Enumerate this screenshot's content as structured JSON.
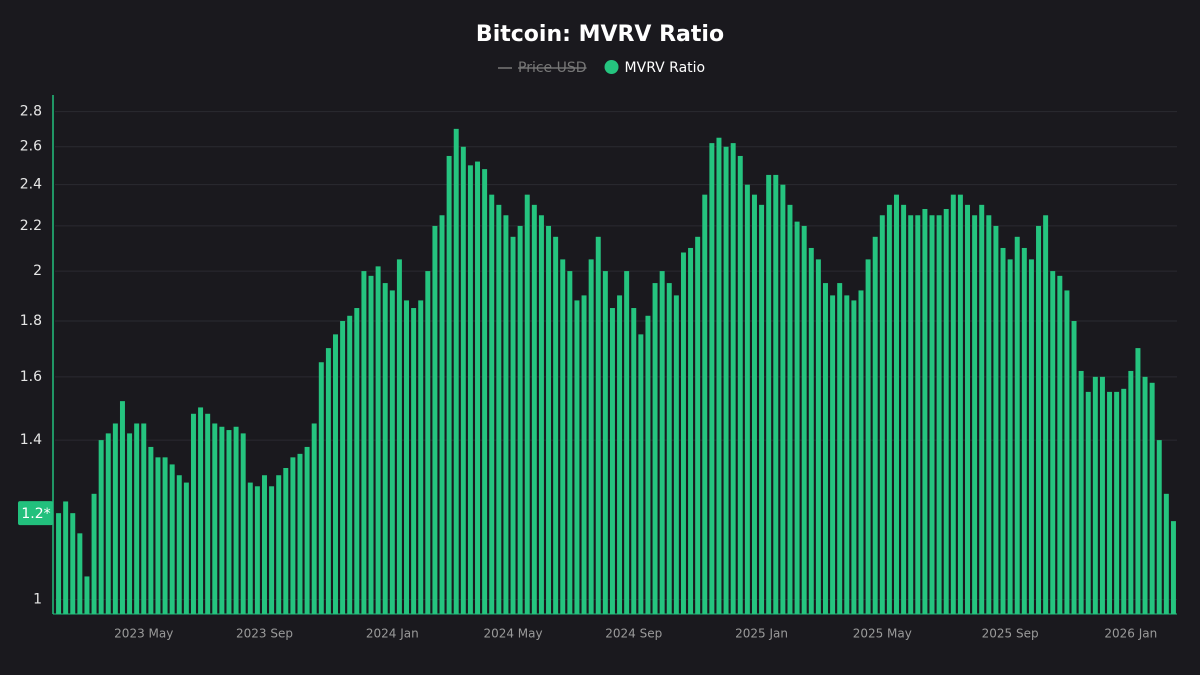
{
  "chart_data": {
    "type": "bar",
    "title": "Bitcoin: MVRV Ratio",
    "log_scale": true,
    "grid": true,
    "ylim": [
      0.97,
      2.9
    ],
    "yticks": [
      1,
      1.4,
      1.6,
      1.8,
      2,
      2.2,
      2.4,
      2.6,
      2.8
    ],
    "marker": {
      "value": 1.2,
      "label": "1.2*",
      "color": "#22c07d"
    },
    "hidden_series": [
      {
        "name": "Price USD",
        "color": "#777777"
      }
    ],
    "categories": [
      null,
      null,
      null,
      null,
      null,
      null,
      null,
      null,
      null,
      null,
      null,
      null,
      "2023 May",
      null,
      null,
      null,
      null,
      null,
      null,
      null,
      null,
      null,
      null,
      null,
      null,
      null,
      null,
      null,
      null,
      "2023 Sep",
      null,
      null,
      null,
      null,
      null,
      null,
      null,
      null,
      null,
      null,
      null,
      null,
      null,
      null,
      null,
      null,
      null,
      "2024 Jan",
      null,
      null,
      null,
      null,
      null,
      null,
      null,
      null,
      null,
      null,
      null,
      null,
      null,
      null,
      null,
      null,
      "2024 May",
      null,
      null,
      null,
      null,
      null,
      null,
      null,
      null,
      null,
      null,
      null,
      null,
      null,
      null,
      null,
      null,
      "2024 Sep",
      null,
      null,
      null,
      null,
      null,
      null,
      null,
      null,
      null,
      null,
      null,
      null,
      null,
      null,
      null,
      null,
      null,
      "2025 Jan",
      null,
      null,
      null,
      null,
      null,
      null,
      null,
      null,
      null,
      null,
      null,
      null,
      null,
      null,
      null,
      null,
      "2025 May",
      null,
      null,
      null,
      null,
      null,
      null,
      null,
      null,
      null,
      null,
      null,
      null,
      null,
      null,
      null,
      null,
      null,
      "2025 Sep",
      null,
      null,
      null,
      null,
      null,
      null,
      null,
      null,
      null,
      null,
      null,
      null,
      null,
      null,
      null,
      null,
      "2026 Jan",
      null,
      null,
      null,
      null,
      null,
      null
    ],
    "series": [
      {
        "name": "MVRV Ratio",
        "color": "#25c47f",
        "values": [
          1.2,
          1.23,
          1.2,
          1.15,
          1.05,
          1.25,
          1.4,
          1.42,
          1.45,
          1.52,
          1.42,
          1.45,
          1.45,
          1.38,
          1.35,
          1.35,
          1.33,
          1.3,
          1.28,
          1.48,
          1.5,
          1.48,
          1.45,
          1.44,
          1.43,
          1.44,
          1.42,
          1.28,
          1.27,
          1.3,
          1.27,
          1.3,
          1.32,
          1.35,
          1.36,
          1.38,
          1.45,
          1.65,
          1.7,
          1.75,
          1.8,
          1.82,
          1.85,
          2.0,
          1.98,
          2.02,
          1.95,
          1.92,
          2.05,
          1.88,
          1.85,
          1.88,
          2.0,
          2.2,
          2.25,
          2.55,
          2.7,
          2.6,
          2.5,
          2.52,
          2.48,
          2.35,
          2.3,
          2.25,
          2.15,
          2.2,
          2.35,
          2.3,
          2.25,
          2.2,
          2.15,
          2.05,
          2.0,
          1.88,
          1.9,
          2.05,
          2.15,
          2.0,
          1.85,
          1.9,
          2.0,
          1.85,
          1.75,
          1.82,
          1.95,
          2.0,
          1.95,
          1.9,
          2.08,
          2.1,
          2.15,
          2.35,
          2.62,
          2.65,
          2.6,
          2.62,
          2.55,
          2.4,
          2.35,
          2.3,
          2.45,
          2.45,
          2.4,
          2.3,
          2.22,
          2.2,
          2.1,
          2.05,
          1.95,
          1.9,
          1.95,
          1.9,
          1.88,
          1.92,
          2.05,
          2.15,
          2.25,
          2.3,
          2.35,
          2.3,
          2.25,
          2.25,
          2.28,
          2.25,
          2.25,
          2.28,
          2.35,
          2.35,
          2.3,
          2.25,
          2.3,
          2.25,
          2.2,
          2.1,
          2.05,
          2.15,
          2.1,
          2.05,
          2.2,
          2.25,
          2.0,
          1.98,
          1.92,
          1.8,
          1.62,
          1.55,
          1.6,
          1.6,
          1.55,
          1.55,
          1.56,
          1.62,
          1.7,
          1.6,
          1.58,
          1.4,
          1.25,
          1.18
        ]
      }
    ]
  }
}
